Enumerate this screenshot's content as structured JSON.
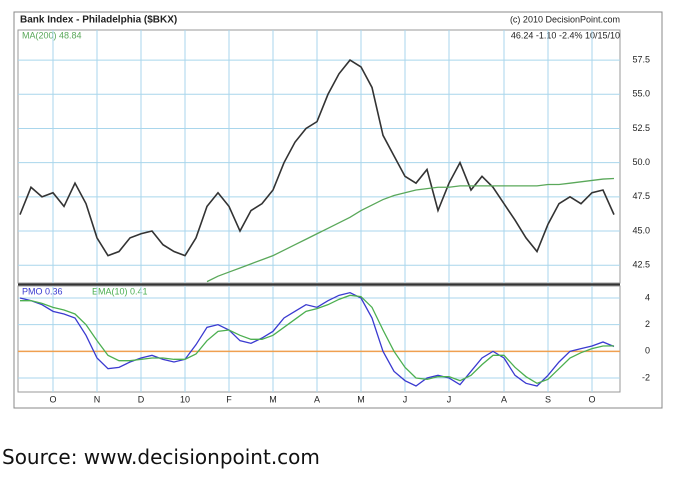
{
  "chart_data": [
    {
      "type": "line",
      "title": "Bank Index - Philadelphia ($BKX)",
      "credit": "(c) 2010 DecisionPoint.com",
      "quote": "46.24 -1.10 -2.4% 10/15/10",
      "series": [
        {
          "color": "#333333",
          "values": [
            46.2,
            48.2,
            47.5,
            47.8,
            46.8,
            48.5,
            47.0,
            44.5,
            43.2,
            43.5,
            44.5,
            44.8,
            45.0,
            44.0,
            43.5,
            43.2,
            44.5,
            46.8,
            47.8,
            46.8,
            45.0,
            46.5,
            47.0,
            48.0,
            50.0,
            51.5,
            52.5,
            53.0,
            55.0,
            56.5,
            57.5,
            57.0,
            55.5,
            52.0,
            50.5,
            49.0,
            48.5,
            49.5,
            46.5,
            48.5,
            50.0,
            48.0,
            49.0,
            48.2,
            47.0,
            45.8,
            44.5,
            43.5,
            45.5,
            47.0,
            47.5,
            47.0,
            47.8,
            48.0,
            46.2
          ]
        },
        {
          "name": "MA(200) 48.84",
          "color": "#5aa85a",
          "values": [
            null,
            null,
            null,
            null,
            null,
            null,
            null,
            null,
            null,
            null,
            null,
            null,
            null,
            null,
            null,
            null,
            null,
            41.3,
            41.7,
            42.0,
            42.3,
            42.6,
            42.9,
            43.2,
            43.6,
            44.0,
            44.4,
            44.8,
            45.2,
            45.6,
            46.0,
            46.5,
            46.9,
            47.3,
            47.6,
            47.8,
            48.0,
            48.1,
            48.2,
            48.2,
            48.3,
            48.3,
            48.3,
            48.3,
            48.3,
            48.3,
            48.3,
            48.3,
            48.4,
            48.4,
            48.5,
            48.6,
            48.7,
            48.8,
            48.84
          ]
        }
      ],
      "ylim": [
        41.2,
        59.7
      ],
      "yticks": [
        42.5,
        {
          "value": 45,
          "label": "45.0"
        },
        47.5,
        {
          "value": 50,
          "label": "50.0"
        },
        52.5,
        {
          "value": 55,
          "label": "55.0"
        },
        57.5
      ],
      "grid": true
    },
    {
      "type": "line",
      "categories": [
        null,
        null,
        null,
        "O",
        null,
        null,
        null,
        "N",
        null,
        null,
        null,
        "D",
        null,
        null,
        null,
        "10",
        null,
        null,
        null,
        "F",
        null,
        null,
        null,
        "M",
        null,
        null,
        null,
        "A",
        null,
        null,
        null,
        "M",
        null,
        null,
        null,
        "J",
        null,
        null,
        null,
        "J",
        null,
        null,
        null,
        null,
        "A",
        null,
        null,
        null,
        "S",
        null,
        null,
        null,
        "O",
        null,
        null
      ],
      "series": [
        {
          "name": "PMO 0.36",
          "color": "#3a3ad0",
          "values": [
            4.0,
            3.8,
            3.5,
            3.0,
            2.8,
            2.5,
            1.2,
            -0.5,
            -1.3,
            -1.2,
            -0.8,
            -0.5,
            -0.3,
            -0.6,
            -0.8,
            -0.6,
            0.5,
            1.8,
            2.0,
            1.6,
            0.8,
            0.6,
            1.0,
            1.5,
            2.5,
            3.0,
            3.5,
            3.3,
            3.8,
            4.2,
            4.4,
            4.0,
            2.5,
            0,
            -1.5,
            -2.2,
            -2.6,
            -2.0,
            -1.8,
            -2.0,
            -2.5,
            -1.5,
            -0.5,
            0,
            -0.5,
            -1.8,
            -2.4,
            -2.6,
            -1.8,
            -0.8,
            0,
            0.2,
            0.4,
            0.7,
            0.36
          ]
        },
        {
          "name": "EMA(10) 0.41",
          "color": "#4caf50",
          "values": [
            3.8,
            3.8,
            3.6,
            3.3,
            3.1,
            2.8,
            2.0,
            0.8,
            -0.3,
            -0.7,
            -0.7,
            -0.6,
            -0.5,
            -0.5,
            -0.6,
            -0.6,
            -0.2,
            0.8,
            1.5,
            1.6,
            1.2,
            0.9,
            0.9,
            1.2,
            1.8,
            2.4,
            3.0,
            3.2,
            3.5,
            3.9,
            4.2,
            4.1,
            3.3,
            1.6,
            0,
            -1.2,
            -2.0,
            -2.1,
            -1.9,
            -1.9,
            -2.2,
            -1.8,
            -1.0,
            -0.3,
            -0.3,
            -1.2,
            -1.9,
            -2.4,
            -2.1,
            -1.3,
            -0.5,
            -0.1,
            0.2,
            0.4,
            0.41
          ]
        }
      ],
      "zero_line_color": "#f0a050",
      "ylim": [
        -3.05,
        4.9
      ],
      "yticks": [
        -2,
        0,
        2,
        4
      ],
      "grid": true
    }
  ],
  "source": "Source: www.decisionpoint.com"
}
